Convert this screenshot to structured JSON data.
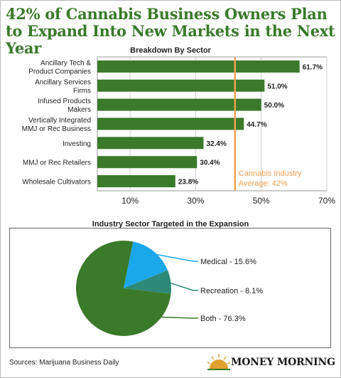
{
  "headline": "42% of Cannabis Business Owners Plan to Expand Into New Markets in the Next Year",
  "sources": "Sources: Marijuana Business Daily",
  "logo": {
    "text": "MONEY MORNING",
    "icon": "sunrise-icon"
  },
  "colors": {
    "green": "#3a7a2a",
    "orange": "#f0a050",
    "blue": "#1aa8ea",
    "teal": "#2d8a78",
    "gray": "#999999"
  },
  "chart_data": [
    {
      "type": "bar",
      "orientation": "horizontal",
      "title": "Breakdown By Sector",
      "categories": [
        [
          "Ancillary Tech &",
          "Product Companies"
        ],
        [
          "Ancillary Services",
          "Firms"
        ],
        [
          "Infused Products",
          "Makers"
        ],
        [
          "Vertically Integrated",
          "MMJ or Rec Business"
        ],
        [
          "Investing"
        ],
        [
          "MMJ or Rec Retailers"
        ],
        [
          "Wholesale Cultivators"
        ]
      ],
      "values": [
        61.7,
        51.0,
        50.0,
        44.7,
        32.4,
        30.4,
        23.8
      ],
      "value_labels": [
        "61.7%",
        "51.0%",
        "50.0%",
        "44.7%",
        "32.4%",
        "30.4%",
        "23.8%"
      ],
      "xlim": [
        0,
        70
      ],
      "xticks": [
        10,
        30,
        50,
        70
      ],
      "xtick_labels": [
        "10%",
        "30%",
        "50%",
        "70%"
      ],
      "grid": true,
      "reference_line": {
        "value": 42,
        "label": [
          "Cannabis Industry",
          "Average: 42%"
        ]
      }
    },
    {
      "type": "pie",
      "title": "Industry Sector Targeted in the Expansion",
      "slices": [
        {
          "label": "Medical - 15.6%",
          "value": 15.6,
          "color": "#1aa8ea"
        },
        {
          "label": "Recreation - 8.1%",
          "value": 8.1,
          "color": "#2d8a78"
        },
        {
          "label": "Both - 76.3%",
          "value": 76.3,
          "color": "#3a7a2a"
        }
      ]
    }
  ]
}
